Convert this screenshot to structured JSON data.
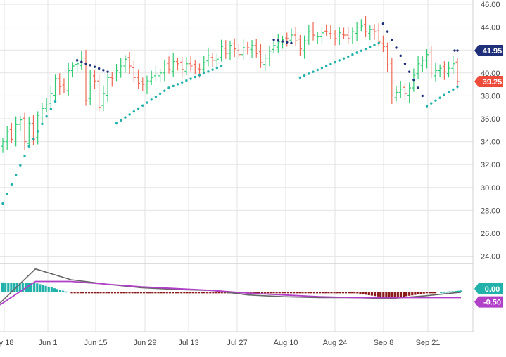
{
  "chart_data": [
    {
      "type": "ohlc",
      "panel": "price",
      "x_tick_labels": [
        "ay 18",
        "Jun 1",
        "Jun 15",
        "Jun 29",
        "Jul 13",
        "Jul 27",
        "Aug 10",
        "Aug 24",
        "Sep 8",
        "Sep 21"
      ],
      "y_tick_labels": [
        "46.00",
        "44.00",
        "42.00",
        "40.00",
        "38.00",
        "36.00",
        "34.00",
        "32.00",
        "30.00",
        "28.00",
        "26.00",
        "24.00"
      ],
      "ylim": [
        23,
        46.3
      ],
      "grid": true,
      "colors": {
        "up": "#2ecc71",
        "down": "#ef6a55",
        "psar_below": "#20b2aa",
        "psar_above": "#1f2f7a"
      },
      "close_series": [
        34.0,
        34.9,
        34.2,
        35.5,
        35.9,
        34.0,
        35.6,
        34.2,
        36.3,
        36.9,
        37.2,
        38.2,
        39.5,
        38.8,
        38.6,
        40.2,
        40.6,
        40.8,
        41.3,
        37.6,
        39.9,
        39.3,
        37.0,
        38.2,
        39.6,
        39.5,
        40.2,
        40.6,
        41.2,
        40.6,
        39.6,
        39.1,
        39.0,
        39.3,
        39.6,
        39.9,
        40.0,
        40.7,
        40.3,
        41.0,
        40.8,
        40.3,
        40.8,
        40.6,
        40.5,
        40.3,
        40.9,
        41.5,
        41.1,
        41.2,
        42.3,
        41.7,
        42.4,
        42.1,
        41.6,
        42.2,
        42.2,
        42.4,
        41.7,
        40.9,
        41.3,
        41.9,
        42.4,
        42.7,
        42.9,
        43.0,
        43.3,
        42.8,
        42.1,
        42.8,
        43.6,
        43.3,
        43.2,
        43.5,
        43.6,
        43.4,
        43.0,
        43.5,
        43.3,
        43.0,
        43.6,
        44.0,
        44.1,
        43.6,
        43.8,
        43.6,
        42.7,
        42.3,
        40.7,
        38.0,
        38.3,
        38.6,
        38.2,
        38.7,
        39.8,
        40.8,
        41.1,
        41.6,
        39.9,
        40.2,
        40.4,
        40.1,
        40.4,
        40.8,
        39.25
      ],
      "psar": [
        {
          "day": 0,
          "value": 28.6,
          "side": "below"
        },
        {
          "day": 6,
          "value": 33.6,
          "side": "below"
        },
        {
          "day": 12,
          "value": 37.5,
          "side": "below"
        },
        {
          "day": 17,
          "value": 41.1,
          "side": "above"
        },
        {
          "day": 24,
          "value": 40.1,
          "side": "above"
        },
        {
          "day": 26,
          "value": 35.6,
          "side": "below"
        },
        {
          "day": 38,
          "value": 38.7,
          "side": "below"
        },
        {
          "day": 50,
          "value": 40.6,
          "side": "below"
        },
        {
          "day": 62,
          "value": 42.9,
          "side": "above"
        },
        {
          "day": 66,
          "value": 42.6,
          "side": "above"
        },
        {
          "day": 68,
          "value": 39.6,
          "side": "below"
        },
        {
          "day": 86,
          "value": 42.6,
          "side": "below"
        },
        {
          "day": 87,
          "value": 44.3,
          "side": "above"
        },
        {
          "day": 96,
          "value": 38.0,
          "side": "above"
        },
        {
          "day": 97,
          "value": 37.1,
          "side": "below"
        },
        {
          "day": 104,
          "value": 38.8,
          "side": "below"
        }
      ],
      "badges": [
        {
          "label": "41.95",
          "value": 41.95,
          "color": "#1f2f7a"
        },
        {
          "label": "39.25",
          "value": 39.25,
          "color": "#ef4b3a"
        }
      ]
    },
    {
      "type": "macd",
      "panel": "indicator",
      "ylim": [
        -2.2,
        1.6
      ],
      "macd_line_color": "#666666",
      "signal_line_color": "#b040c8",
      "histogram_colors": {
        "positive": "#20b2aa",
        "negative": "#8b1a1a"
      },
      "macd": [
        -0.6,
        1.3,
        0.7,
        0.45,
        0.25,
        0.15,
        0.1,
        -0.15,
        -0.25,
        -0.3,
        -0.3,
        -0.35,
        -0.2,
        0.0
      ],
      "signal": [
        -0.7,
        0.6,
        0.6,
        0.45,
        0.3,
        0.2,
        0.1,
        -0.05,
        -0.15,
        -0.25,
        -0.3,
        -0.3,
        -0.3,
        -0.3
      ],
      "histogram_envelope": [
        0.55,
        0.5,
        -0.05,
        -0.05,
        -0.03,
        -0.03,
        -0.03,
        -0.02,
        -0.02,
        -0.02,
        -0.05,
        -0.35,
        -0.05,
        0.1
      ],
      "badges": [
        {
          "label": "-0.50",
          "value": -0.5,
          "color": "#b040c8"
        },
        {
          "label": "0.00",
          "value": 0.0,
          "color": "#20b2aa"
        }
      ]
    }
  ]
}
